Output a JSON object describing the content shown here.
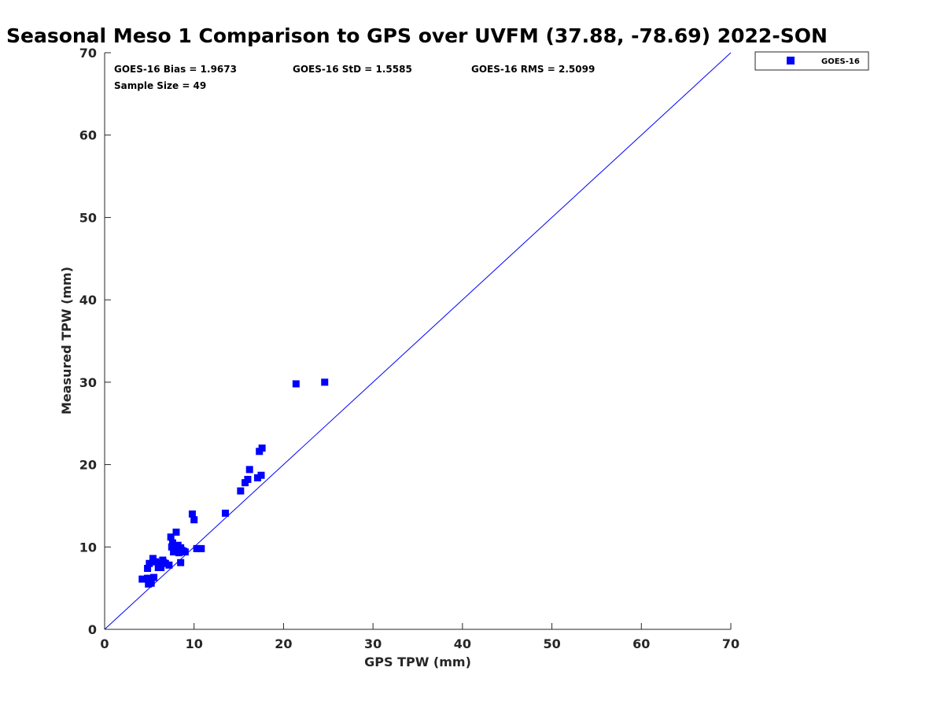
{
  "chart_data": {
    "type": "scatter",
    "title": "Seasonal Meso 1 Comparison to GPS over UVFM (37.88, -78.69) 2022-SON",
    "xlabel": "GPS TPW (mm)",
    "ylabel": "Measured TPW (mm)",
    "xlim": [
      0,
      70
    ],
    "ylim": [
      0,
      70
    ],
    "xticks": [
      0,
      10,
      20,
      30,
      40,
      50,
      60,
      70
    ],
    "yticks": [
      0,
      10,
      20,
      30,
      40,
      50,
      60,
      70
    ],
    "grid": false,
    "legend_position": "outside-top-right",
    "reference_line": {
      "name": "1:1 line",
      "x": [
        0,
        70
      ],
      "y": [
        0,
        70
      ],
      "color": "#0000ff"
    },
    "series": [
      {
        "name": "GOES-16",
        "color": "#0000ff",
        "marker": "square",
        "x": [
          4.2,
          4.8,
          5.0,
          5.2,
          4.9,
          5.5,
          4.8,
          5.0,
          5.2,
          5.4,
          6.0,
          6.2,
          6.5,
          6.8,
          7.2,
          6.3,
          7.4,
          7.6,
          7.8,
          7.9,
          8.0,
          8.1,
          8.3,
          8.5,
          8.2,
          7.7,
          7.5,
          8.8,
          8.5,
          9.8,
          10.0,
          10.3,
          10.8,
          13.5,
          15.2,
          15.7,
          16.0,
          16.2,
          17.1,
          17.3,
          17.5,
          17.6,
          21.4,
          24.6,
          7.9,
          8.6,
          9.0,
          5.7,
          6.6
        ],
        "y": [
          6.1,
          6.2,
          6.0,
          5.6,
          5.5,
          6.3,
          7.4,
          8.0,
          5.8,
          8.6,
          7.5,
          8.0,
          8.4,
          8.0,
          7.8,
          7.5,
          11.2,
          10.5,
          10.0,
          9.5,
          11.8,
          9.8,
          9.3,
          9.9,
          10.2,
          9.4,
          10.0,
          9.5,
          8.1,
          14.0,
          13.3,
          9.8,
          9.8,
          14.1,
          16.8,
          17.8,
          18.2,
          19.4,
          18.4,
          21.6,
          18.7,
          22.0,
          29.8,
          30.0,
          9.7,
          9.6,
          9.4,
          8.2,
          8.1
        ]
      }
    ]
  },
  "stats": {
    "bias": "GOES-16 Bias = 1.9673",
    "std": "GOES-16 StD = 1.5585",
    "rms": "GOES-16 RMS = 2.5099",
    "sample_size": "Sample Size = 49"
  },
  "legend": {
    "entries": [
      {
        "label": "GOES-16",
        "color": "#0000ff"
      }
    ]
  }
}
